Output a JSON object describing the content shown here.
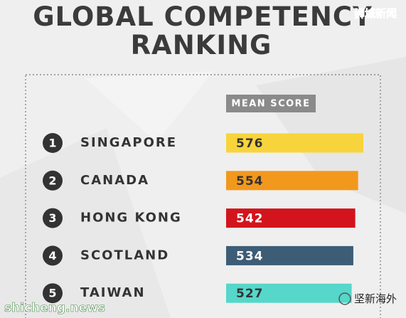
{
  "chart_data": {
    "type": "bar",
    "orientation": "horizontal",
    "title": [
      "GLOBAL COMPETENCY",
      "RANKING"
    ],
    "value_header": "MEAN SCORE",
    "ranks": [
      1,
      2,
      3,
      4,
      5
    ],
    "categories": [
      "SINGAPORE",
      "CANADA",
      "HONG KONG",
      "SCOTLAND",
      "TAIWAN"
    ],
    "values": [
      576,
      554,
      542,
      534,
      527
    ],
    "colors": [
      "#f8d43c",
      "#f2981d",
      "#d3141c",
      "#3d5d76",
      "#55d7ca"
    ],
    "label_colors": [
      "#333333",
      "#333333",
      "#ffffff",
      "#ffffff",
      "#333333"
    ],
    "watermarks": [
      "狮城新闻",
      "shicheng.news",
      "坚新海外"
    ]
  }
}
